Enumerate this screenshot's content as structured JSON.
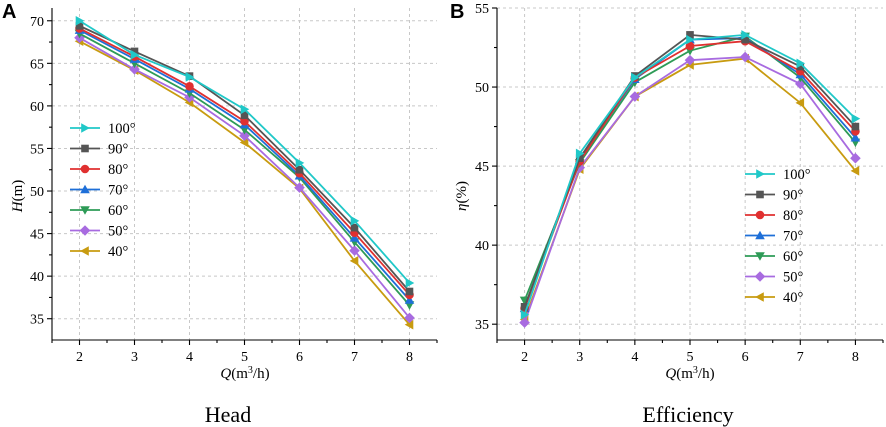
{
  "chart_data": [
    {
      "panel": "A",
      "type": "line",
      "caption": "Head",
      "ylabel_italic": "H",
      "ylabel_rest": "(m)",
      "xlabel_italic": "Q",
      "xlabel_rest": "(m",
      "xlabel_sup": "3",
      "xlabel_end": "/h)",
      "x": [
        2,
        3,
        4,
        5,
        6,
        7,
        8
      ],
      "xlim": [
        1.5,
        8.5
      ],
      "ylim": [
        32.5,
        71.5
      ],
      "yticks": [
        35,
        40,
        45,
        50,
        55,
        60,
        65,
        70
      ],
      "xticks": [
        2,
        3,
        4,
        5,
        6,
        7,
        8
      ],
      "legend_position": "left",
      "series": [
        {
          "name": "100°",
          "color": "#20c8c8",
          "marker": "triangle-right",
          "values": [
            70.0,
            66.0,
            63.4,
            59.6,
            53.3,
            46.5,
            39.2
          ]
        },
        {
          "name": "90°",
          "color": "#555555",
          "marker": "square",
          "values": [
            69.4,
            66.4,
            63.5,
            58.9,
            52.5,
            45.7,
            38.2
          ]
        },
        {
          "name": "80°",
          "color": "#e03030",
          "marker": "circle",
          "values": [
            69.1,
            65.8,
            62.3,
            58.2,
            52.1,
            45.1,
            37.8
          ]
        },
        {
          "name": "70°",
          "color": "#1e6fd8",
          "marker": "triangle-up",
          "values": [
            68.9,
            65.5,
            62.0,
            57.8,
            51.8,
            44.5,
            37.2
          ]
        },
        {
          "name": "60°",
          "color": "#2e9b57",
          "marker": "triangle-down",
          "values": [
            68.5,
            65.0,
            61.5,
            57.2,
            51.6,
            44.0,
            36.6
          ]
        },
        {
          "name": "50°",
          "color": "#a86be0",
          "marker": "diamond",
          "values": [
            68.0,
            64.3,
            61.0,
            56.5,
            50.4,
            43.0,
            35.1
          ]
        },
        {
          "name": "40°",
          "color": "#c89b10",
          "marker": "triangle-left",
          "values": [
            67.6,
            64.2,
            60.4,
            55.7,
            50.3,
            41.8,
            34.3
          ]
        }
      ]
    },
    {
      "panel": "B",
      "type": "line",
      "caption": "Efficiency",
      "ylabel_italic": "η",
      "ylabel_rest": "(%)",
      "xlabel_italic": "Q",
      "xlabel_rest": "(m",
      "xlabel_sup": "3",
      "xlabel_end": "/h)",
      "x": [
        2,
        3,
        4,
        5,
        6,
        7,
        8
      ],
      "xlim": [
        1.5,
        8.5
      ],
      "ylim": [
        34,
        55
      ],
      "yticks": [
        35,
        40,
        45,
        50,
        55
      ],
      "xticks": [
        2,
        3,
        4,
        5,
        6,
        7,
        8
      ],
      "legend_position": "bottom-right",
      "series": [
        {
          "name": "100°",
          "color": "#20c8c8",
          "marker": "triangle-right",
          "values": [
            35.6,
            45.8,
            50.6,
            53.0,
            53.3,
            51.5,
            48.0
          ]
        },
        {
          "name": "90°",
          "color": "#555555",
          "marker": "square",
          "values": [
            36.1,
            45.5,
            50.7,
            53.3,
            53.0,
            51.3,
            47.5
          ]
        },
        {
          "name": "80°",
          "color": "#e03030",
          "marker": "circle",
          "values": [
            36.0,
            45.3,
            50.6,
            52.6,
            52.9,
            51.0,
            47.2
          ]
        },
        {
          "name": "70°",
          "color": "#1e6fd8",
          "marker": "triangle-up",
          "values": [
            36.0,
            45.4,
            50.5,
            53.0,
            53.1,
            50.8,
            46.8
          ]
        },
        {
          "name": "60°",
          "color": "#2e9b57",
          "marker": "triangle-down",
          "values": [
            36.5,
            45.2,
            50.3,
            52.3,
            53.2,
            50.6,
            46.5
          ]
        },
        {
          "name": "50°",
          "color": "#a86be0",
          "marker": "diamond",
          "values": [
            35.1,
            44.9,
            49.4,
            51.7,
            51.9,
            50.2,
            45.5
          ]
        },
        {
          "name": "40°",
          "color": "#c89b10",
          "marker": "triangle-left",
          "values": [
            35.3,
            44.8,
            49.4,
            51.4,
            51.8,
            49.0,
            44.7
          ]
        }
      ]
    }
  ]
}
